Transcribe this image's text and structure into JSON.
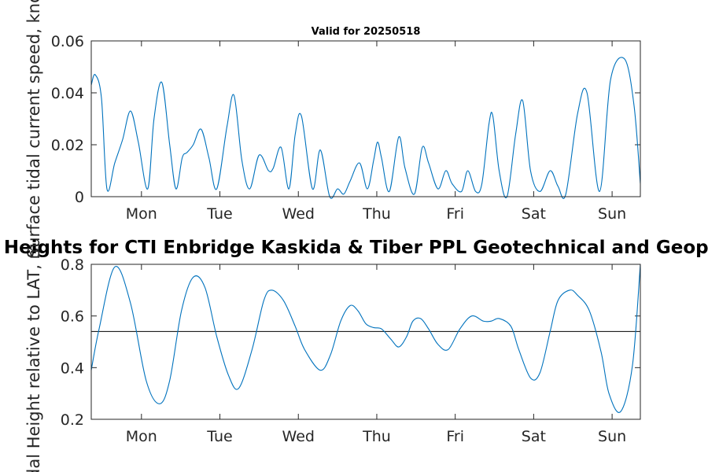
{
  "chart_data": [
    {
      "type": "line",
      "title": "Valid for 20250518",
      "ylabel": "Surface tidal current speed, knots",
      "xlabel": "",
      "xlim": [
        0,
        7
      ],
      "ylim": [
        0,
        0.06
      ],
      "yticks": [
        0,
        0.02,
        0.04,
        0.06
      ],
      "ytick_labels": [
        "0",
        "0.02",
        "0.04",
        "0.06"
      ],
      "xticks": [
        0.64,
        1.64,
        2.64,
        3.64,
        4.64,
        5.64,
        6.64
      ],
      "xtick_labels": [
        "Mon",
        "Tue",
        "Wed",
        "Thu",
        "Fri",
        "Sat",
        "Sun"
      ],
      "grid": false,
      "color": "#0072BD",
      "series": [
        {
          "x": [
            0,
            0.05,
            0.13,
            0.2,
            0.3,
            0.4,
            0.5,
            0.6,
            0.72,
            0.8,
            0.9,
            1.0,
            1.08,
            1.16,
            1.22,
            1.3,
            1.4,
            1.5,
            1.6,
            1.73,
            1.82,
            1.92,
            2.02,
            2.14,
            2.26,
            2.32,
            2.42,
            2.52,
            2.6,
            2.68,
            2.82,
            2.92,
            3.04,
            3.14,
            3.22,
            3.3,
            3.42,
            3.52,
            3.6,
            3.65,
            3.7,
            3.8,
            3.92,
            4.0,
            4.12,
            4.22,
            4.3,
            4.42,
            4.52,
            4.6,
            4.72,
            4.8,
            4.9,
            4.98,
            5.07,
            5.12,
            5.2,
            5.3,
            5.41,
            5.5,
            5.6,
            5.72,
            5.85,
            5.95,
            6.05,
            6.2,
            6.32,
            6.48,
            6.62,
            6.8,
            6.92,
            7.0
          ],
          "values": [
            0.043,
            0.047,
            0.038,
            0.003,
            0.013,
            0.022,
            0.033,
            0.021,
            0.003,
            0.03,
            0.044,
            0.02,
            0.003,
            0.015,
            0.017,
            0.02,
            0.026,
            0.015,
            0.003,
            0.027,
            0.039,
            0.014,
            0.003,
            0.016,
            0.01,
            0.011,
            0.019,
            0.003,
            0.024,
            0.031,
            0.003,
            0.018,
            0.0,
            0.003,
            0.001,
            0.006,
            0.013,
            0.003,
            0.014,
            0.021,
            0.015,
            0.002,
            0.023,
            0.011,
            0.001,
            0.019,
            0.013,
            0.003,
            0.01,
            0.005,
            0.002,
            0.01,
            0.002,
            0.005,
            0.028,
            0.031,
            0.01,
            0.0,
            0.024,
            0.037,
            0.01,
            0.002,
            0.01,
            0.004,
            0.001,
            0.032,
            0.04,
            0.002,
            0.045,
            0.053,
            0.035,
            0.005
          ]
        }
      ]
    },
    {
      "type": "line",
      "title": "Currents and Heights for CTI Enbridge  Kaskida & Tiber PPL Geotechnical and Geophysical Surveys",
      "ylabel": "Tidal Height relative to LAT, m",
      "xlabel": "",
      "xlim": [
        0,
        7
      ],
      "ylim": [
        0.2,
        0.8
      ],
      "yticks": [
        0.2,
        0.4,
        0.6,
        0.8
      ],
      "ytick_labels": [
        "0.2",
        "0.4",
        "0.6",
        "0.8"
      ],
      "xticks": [
        0.64,
        1.64,
        2.64,
        3.64,
        4.64,
        5.64,
        6.64
      ],
      "xtick_labels": [
        "Mon",
        "Tue",
        "Wed",
        "Thu",
        "Fri",
        "Sat",
        "Sun"
      ],
      "grid": false,
      "color": "#0072BD",
      "reference_line": 0.54,
      "series": [
        {
          "x": [
            0,
            0.1,
            0.3,
            0.5,
            0.7,
            0.87,
            1.0,
            1.15,
            1.3,
            1.45,
            1.6,
            1.75,
            1.88,
            2.05,
            2.2,
            2.3,
            2.45,
            2.6,
            2.72,
            2.92,
            3.05,
            3.18,
            3.3,
            3.4,
            3.5,
            3.6,
            3.7,
            3.82,
            3.92,
            4.02,
            4.1,
            4.2,
            4.3,
            4.42,
            4.55,
            4.7,
            4.85,
            5.0,
            5.1,
            5.2,
            5.35,
            5.45,
            5.6,
            5.72,
            5.85,
            5.95,
            6.1,
            6.2,
            6.35,
            6.5,
            6.6,
            6.75,
            6.9,
            7.0
          ],
          "values": [
            0.39,
            0.55,
            0.79,
            0.65,
            0.35,
            0.26,
            0.35,
            0.62,
            0.75,
            0.71,
            0.52,
            0.37,
            0.32,
            0.47,
            0.66,
            0.7,
            0.66,
            0.56,
            0.47,
            0.39,
            0.45,
            0.58,
            0.64,
            0.62,
            0.57,
            0.555,
            0.55,
            0.51,
            0.48,
            0.52,
            0.58,
            0.59,
            0.55,
            0.49,
            0.47,
            0.55,
            0.6,
            0.58,
            0.58,
            0.59,
            0.56,
            0.47,
            0.36,
            0.38,
            0.54,
            0.66,
            0.7,
            0.68,
            0.62,
            0.46,
            0.3,
            0.23,
            0.41,
            0.8
          ]
        }
      ]
    }
  ]
}
